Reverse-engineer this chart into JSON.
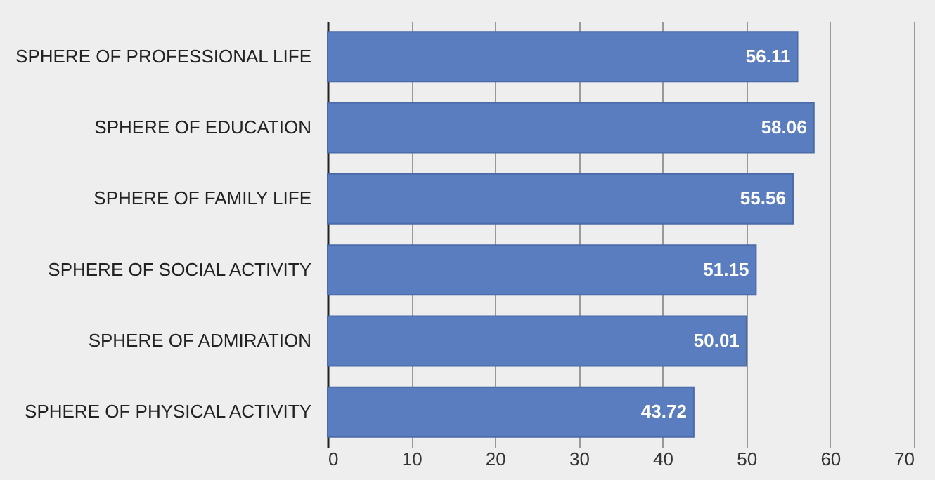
{
  "chart_data": {
    "type": "bar",
    "orientation": "horizontal",
    "categories": [
      "SPHERE OF PROFESSIONAL LIFE",
      "SPHERE OF EDUCATION",
      "SPHERE OF FAMILY LIFE",
      "SPHERE OF SOCIAL ACTIVITY",
      "SPHERE OF ADMIRATION",
      "SPHERE OF PHYSICAL ACTIVITY"
    ],
    "values": [
      56.11,
      58.06,
      55.56,
      51.15,
      50.01,
      43.72
    ],
    "color": "#5a7dbf",
    "xlim": [
      0,
      70
    ],
    "xticks": [
      0,
      10,
      20,
      30,
      40,
      50,
      60,
      70
    ],
    "grid": "x",
    "data_labels": true
  }
}
